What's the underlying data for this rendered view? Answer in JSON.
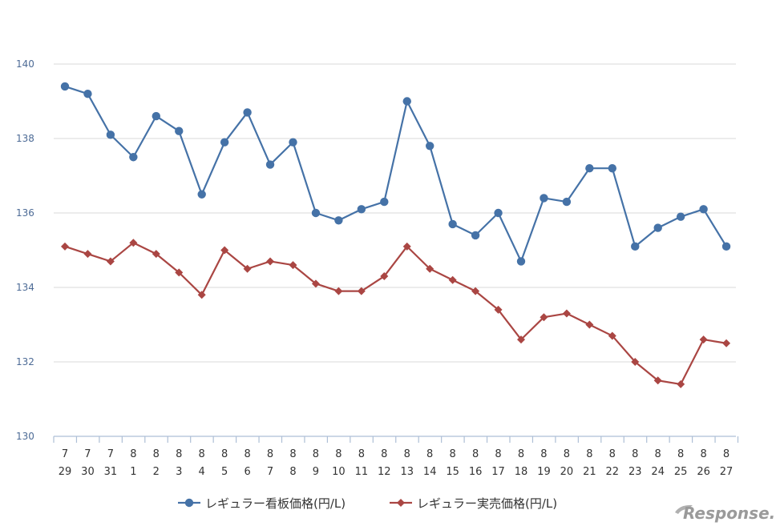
{
  "chart_data": {
    "type": "line",
    "title": "",
    "xlabel": "",
    "ylabel": "",
    "ylim": [
      130,
      140
    ],
    "yticks": [
      130,
      132,
      134,
      136,
      138,
      140
    ],
    "grid": true,
    "legend_position": "bottom",
    "categories": [
      {
        "month": "7",
        "day": "29"
      },
      {
        "month": "7",
        "day": "30"
      },
      {
        "month": "7",
        "day": "31"
      },
      {
        "month": "8",
        "day": "1"
      },
      {
        "month": "8",
        "day": "2"
      },
      {
        "month": "8",
        "day": "3"
      },
      {
        "month": "8",
        "day": "4"
      },
      {
        "month": "8",
        "day": "5"
      },
      {
        "month": "8",
        "day": "6"
      },
      {
        "month": "8",
        "day": "7"
      },
      {
        "month": "8",
        "day": "8"
      },
      {
        "month": "8",
        "day": "9"
      },
      {
        "month": "8",
        "day": "10"
      },
      {
        "month": "8",
        "day": "11"
      },
      {
        "month": "8",
        "day": "12"
      },
      {
        "month": "8",
        "day": "13"
      },
      {
        "month": "8",
        "day": "14"
      },
      {
        "month": "8",
        "day": "15"
      },
      {
        "month": "8",
        "day": "16"
      },
      {
        "month": "8",
        "day": "17"
      },
      {
        "month": "8",
        "day": "18"
      },
      {
        "month": "8",
        "day": "19"
      },
      {
        "month": "8",
        "day": "20"
      },
      {
        "month": "8",
        "day": "21"
      },
      {
        "month": "8",
        "day": "22"
      },
      {
        "month": "8",
        "day": "23"
      },
      {
        "month": "8",
        "day": "24"
      },
      {
        "month": "8",
        "day": "25"
      },
      {
        "month": "8",
        "day": "26"
      },
      {
        "month": "8",
        "day": "27"
      }
    ],
    "series": [
      {
        "name": "レギュラー看板価格(円/L)",
        "color": "#4572a7",
        "marker": "circle",
        "values": [
          139.4,
          139.2,
          138.1,
          137.5,
          138.6,
          138.2,
          136.5,
          137.9,
          138.7,
          137.3,
          137.9,
          136.0,
          135.8,
          136.1,
          136.3,
          139.0,
          137.8,
          135.7,
          135.4,
          136.0,
          134.7,
          136.4,
          136.3,
          137.2,
          137.2,
          135.1,
          135.6,
          135.9,
          136.1,
          135.1
        ]
      },
      {
        "name": "レギュラー実売価格(円/L)",
        "color": "#aa4643",
        "marker": "diamond",
        "values": [
          135.1,
          134.9,
          134.7,
          135.2,
          134.9,
          134.4,
          133.8,
          135.0,
          134.5,
          134.7,
          134.6,
          134.1,
          133.9,
          133.9,
          134.3,
          135.1,
          134.5,
          134.2,
          133.9,
          133.4,
          132.6,
          133.2,
          133.3,
          133.0,
          132.7,
          132.0,
          131.5,
          131.4,
          132.6,
          132.5
        ]
      }
    ]
  },
  "watermark": "Response."
}
